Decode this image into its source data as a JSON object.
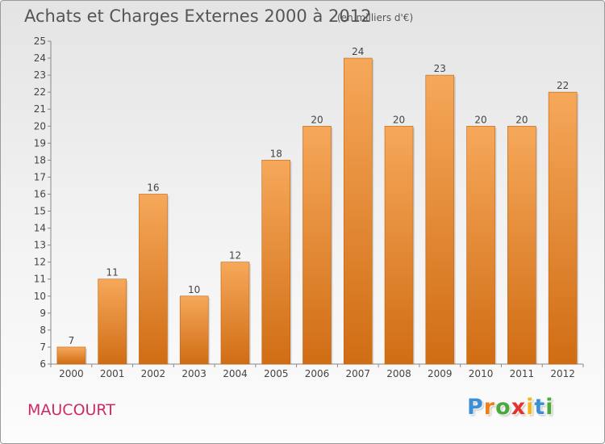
{
  "title": "Achats et Charges Externes 2000 à 2012",
  "subtitle": "(en milliers d'€)",
  "commune": "MAUCOURT",
  "logo": {
    "letters": [
      "P",
      "r",
      "o",
      "x",
      "i",
      "t",
      "i"
    ],
    "colors": [
      "#3a8fd6",
      "#f07f1a",
      "#4aa83c",
      "#e2342d",
      "#f2b61a",
      "#3a8fd6",
      "#4aa83c"
    ]
  },
  "colors": {
    "bar_top": "#f6a85a",
    "bar_bottom": "#d06d14",
    "bar_edge": "#c2620e",
    "title": "#555555",
    "commune": "#cc2a66"
  },
  "chart_data": {
    "type": "bar",
    "categories": [
      "2000",
      "2001",
      "2002",
      "2003",
      "2004",
      "2005",
      "2006",
      "2007",
      "2008",
      "2009",
      "2010",
      "2011",
      "2012"
    ],
    "values": [
      7,
      11,
      16,
      10,
      12,
      18,
      20,
      24,
      20,
      23,
      20,
      20,
      22
    ],
    "data_labels": [
      "7",
      "11",
      "16",
      "10",
      "12",
      "18",
      "20",
      "24",
      "20",
      "23",
      "20",
      "20",
      "22"
    ],
    "title": "Achats et Charges Externes 2000 à 2012",
    "xlabel": "",
    "ylabel": "",
    "ylim": [
      6,
      25
    ],
    "yticks": [
      6,
      7,
      8,
      9,
      10,
      11,
      12,
      13,
      14,
      15,
      16,
      17,
      18,
      19,
      20,
      21,
      22,
      23,
      24,
      25
    ],
    "grid": false,
    "legend": "none"
  }
}
